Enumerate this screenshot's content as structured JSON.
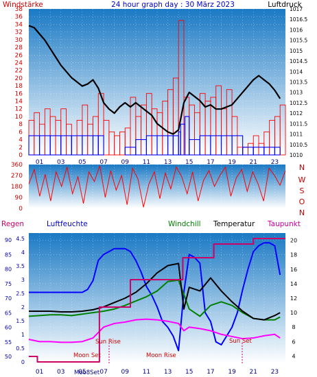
{
  "header": {
    "left_label": "Windstärke",
    "title": "24 hour graph day : 30 März 2023",
    "right_label": "Luftdruck"
  },
  "colors": {
    "grad_top": "#1a79c4",
    "grad_bottom": "#ffffff",
    "wind": "#ff0000",
    "gust": "#ff0000",
    "wind_avg": "#0000ff",
    "pressure": "#000000",
    "direction": "#ff0000",
    "humidity": "#0000ff",
    "windchill": "#008000",
    "temperature": "#000000",
    "dewpoint": "#ff00ff",
    "rain": "#cc0066",
    "axis_red": "#cc0000",
    "axis_blue": "#0000aa"
  },
  "chart_data": [
    {
      "type": "line",
      "x_ticks": [
        "01",
        "03",
        "05",
        "07",
        "09",
        "11",
        "13",
        "15",
        "17",
        "19",
        "21",
        "23"
      ],
      "y_left_ticks": [
        "0",
        "2",
        "4",
        "6",
        "8",
        "10",
        "12",
        "14",
        "16",
        "18",
        "20",
        "22",
        "24",
        "26",
        "28",
        "30",
        "32",
        "34",
        "36",
        "38"
      ],
      "y_left_range": [
        0,
        38
      ],
      "y_right_ticks": [
        "1010",
        "1010.5",
        "1011",
        "1011.5",
        "1012",
        "1012.5",
        "1013",
        "1013.5",
        "1014",
        "1014.5",
        "1015",
        "1015.5",
        "1016",
        "1016.5",
        "1017"
      ],
      "y_right_range": [
        1010,
        1017
      ],
      "grid": true,
      "series": [
        {
          "name": "Windstärke",
          "axis": "left",
          "x": [
            0,
            0.5,
            1,
            1.5,
            2,
            2.5,
            3,
            3.5,
            4,
            4.5,
            5,
            5.5,
            6,
            6.5,
            7,
            7.5,
            8,
            8.5,
            9,
            9.5,
            10,
            10.5,
            11,
            11.5,
            12,
            12.5,
            13,
            13.5,
            14,
            14.5,
            15,
            15.5,
            16,
            16.5,
            17,
            17.5,
            18,
            18.5,
            19,
            19.5,
            20,
            20.5,
            21,
            21.5,
            22,
            22.5,
            23,
            23.5
          ],
          "values": [
            9,
            11,
            8,
            12,
            10,
            9,
            12,
            8,
            5,
            9,
            13,
            8,
            10,
            16,
            9,
            6,
            5,
            6,
            7,
            15,
            10,
            13,
            16,
            12,
            11,
            14,
            17,
            20,
            35,
            15,
            13,
            11,
            16,
            14,
            15,
            18,
            12,
            17,
            10,
            2,
            2,
            3,
            5,
            3,
            6,
            9,
            10,
            13
          ]
        },
        {
          "name": "Böen",
          "axis": "left",
          "x": [
            0,
            1,
            2,
            3,
            4,
            5,
            6,
            6.5,
            7,
            8,
            9,
            10,
            11,
            12,
            13,
            13.5,
            14,
            14.2,
            14.6,
            15,
            16,
            17,
            18,
            19,
            20,
            21,
            22,
            23,
            23.5
          ],
          "values": [
            5,
            5,
            5,
            5,
            5,
            5,
            5,
            5,
            0,
            0,
            2,
            4,
            5,
            5,
            5,
            5,
            6,
            8,
            10,
            4,
            5,
            5,
            5,
            5,
            2,
            2,
            2,
            2,
            5
          ]
        },
        {
          "name": "Luftdruck",
          "axis": "right",
          "x": [
            0,
            0.5,
            1,
            1.5,
            2,
            2.5,
            3,
            3.5,
            4,
            4.5,
            5,
            5.5,
            6,
            6.5,
            7,
            7.5,
            8,
            8.5,
            9,
            9.5,
            10,
            10.5,
            11,
            11.5,
            12,
            12.5,
            13,
            13.5,
            14,
            14.5,
            15,
            15.5,
            16,
            16.5,
            17,
            17.5,
            18,
            18.5,
            19,
            19.5,
            20,
            20.5,
            21,
            21.5,
            22,
            22.5,
            23,
            23.5
          ],
          "values": [
            1016.2,
            1016.1,
            1015.8,
            1015.5,
            1015.1,
            1014.7,
            1014.3,
            1014.0,
            1013.7,
            1013.5,
            1013.3,
            1013.4,
            1013.6,
            1013.2,
            1012.5,
            1012.2,
            1012.0,
            1012.3,
            1012.5,
            1012.3,
            1012.5,
            1012.3,
            1012.1,
            1011.9,
            1011.5,
            1011.3,
            1011.1,
            1011.0,
            1011.2,
            1012.5,
            1013.0,
            1012.8,
            1012.6,
            1012.3,
            1012.4,
            1012.2,
            1012.2,
            1012.3,
            1012.4,
            1012.7,
            1013.0,
            1013.3,
            1013.6,
            1013.8,
            1013.6,
            1013.4,
            1013.1,
            1012.7
          ]
        }
      ]
    },
    {
      "type": "scatter",
      "y_left_ticks": [
        "0",
        "90",
        "180",
        "270",
        "360"
      ],
      "y_left_range": [
        0,
        360
      ],
      "y_right_labels": [
        "N",
        "W",
        "S",
        "O",
        "N"
      ],
      "x_ticks": [
        "01",
        "03",
        "05",
        "07",
        "09",
        "11",
        "13",
        "15",
        "17",
        "19",
        "21",
        "23"
      ],
      "series": [
        {
          "name": "Windrichtung",
          "x_range": [
            0,
            24
          ],
          "values": [
            200,
            320,
            100,
            280,
            60,
            300,
            180,
            340,
            120,
            260,
            40,
            300,
            220,
            350,
            90,
            310,
            150,
            270,
            30,
            330,
            240,
            10,
            200,
            300,
            80,
            290,
            160,
            340,
            260,
            120,
            300,
            60,
            230,
            310,
            180,
            270,
            340,
            100,
            250,
            320,
            140,
            300,
            200,
            60,
            330,
            270,
            190,
            310
          ]
        }
      ]
    },
    {
      "type": "line",
      "legend": [
        "Regen",
        "Luftfeuchte",
        "Windchill",
        "Temperatur",
        "Taupunkt"
      ],
      "x_ticks": [
        "01",
        "03",
        "05",
        "07",
        "09",
        "11",
        "13",
        "15",
        "17",
        "19",
        "21",
        "23"
      ],
      "y_rain_ticks": [
        "0",
        "0.5",
        "1",
        "1.5",
        "2",
        "2.5",
        "3",
        "3.5",
        "4",
        "4.5"
      ],
      "y_rain_range": [
        0,
        4.5
      ],
      "y_hum_ticks": [
        "50",
        "55",
        "60",
        "65",
        "70",
        "75",
        "80",
        "85",
        "90"
      ],
      "y_hum_range": [
        50,
        90
      ],
      "y_temp_ticks": [
        "4",
        "6",
        "8",
        "10",
        "12",
        "14",
        "16",
        "18",
        "20"
      ],
      "y_temp_range": [
        3,
        21
      ],
      "annotations": [
        "Moon Set",
        "Sun Rise",
        "Moon Rise",
        "Sun Set",
        "Moo8Set"
      ],
      "series": [
        {
          "name": "Luftfeuchte",
          "axis": "humidity",
          "x": [
            0,
            1,
            2,
            3,
            4,
            5,
            5.5,
            6,
            6.5,
            7,
            7.5,
            8,
            8.5,
            9,
            9.5,
            10,
            10.5,
            11,
            11.5,
            12,
            12.5,
            13,
            13.5,
            14,
            14.5,
            15,
            15.5,
            16,
            16.5,
            17,
            17.5,
            18,
            18.5,
            19,
            19.5,
            20,
            20.5,
            21,
            21.5,
            22,
            22.5,
            23,
            23.5
          ],
          "values": [
            72,
            72,
            72,
            72,
            72,
            72,
            73,
            76,
            83,
            85,
            86,
            87,
            87,
            87,
            86,
            83,
            79,
            74,
            71,
            67,
            62,
            60,
            57,
            52,
            72,
            85,
            84,
            82,
            65,
            62,
            55,
            54,
            57,
            60,
            65,
            73,
            80,
            86,
            88,
            89,
            89,
            88,
            78
          ]
        },
        {
          "name": "Windchill",
          "axis": "temp",
          "x": [
            0,
            1,
            2,
            3,
            4,
            5,
            6,
            7,
            8,
            9,
            10,
            11,
            12,
            13,
            14,
            14.5,
            15,
            16,
            17,
            18,
            19,
            20,
            21,
            22,
            23,
            23.5
          ],
          "values": [
            9.5,
            9.6,
            9.7,
            9.7,
            9.6,
            9.8,
            10.0,
            10.2,
            10.5,
            11.0,
            11.6,
            12.2,
            13.0,
            14.3,
            14.5,
            12.5,
            10.5,
            9.5,
            11.0,
            11.5,
            11.0,
            10.0,
            9.2,
            9.0,
            9.0,
            9.4
          ]
        },
        {
          "name": "Temperatur",
          "axis": "temp",
          "x": [
            0,
            1,
            2,
            3,
            4,
            5,
            6,
            7,
            8,
            9,
            10,
            11,
            12,
            13,
            14,
            14.5,
            15,
            16,
            17,
            18,
            19,
            20,
            21,
            22,
            23,
            23.5
          ],
          "values": [
            10.2,
            10.2,
            10.2,
            10.1,
            10.1,
            10.2,
            10.4,
            10.8,
            11.4,
            12.0,
            12.8,
            14.0,
            15.5,
            16.5,
            16.8,
            10.5,
            13.5,
            13.0,
            14.8,
            13.0,
            11.5,
            10.2,
            9.2,
            9.0,
            9.6,
            10.0
          ]
        },
        {
          "name": "Taupunkt",
          "axis": "temp",
          "x": [
            0,
            1,
            2,
            3,
            4,
            5,
            6,
            7,
            8,
            9,
            10,
            11,
            12,
            13,
            14,
            14.5,
            15,
            16,
            17,
            18,
            19,
            20,
            21,
            22,
            23,
            23.5
          ],
          "values": [
            6.3,
            6.0,
            6.0,
            5.9,
            5.9,
            6.0,
            6.5,
            8.0,
            8.5,
            8.7,
            9.0,
            9.1,
            9.0,
            8.8,
            8.5,
            7.5,
            8.0,
            7.8,
            7.5,
            7.0,
            6.7,
            6.4,
            6.5,
            6.8,
            7.0,
            6.5
          ]
        },
        {
          "name": "Regen",
          "axis": "rain",
          "step": true,
          "x": [
            0,
            0.3,
            0.8,
            6.6,
            6.6,
            9.5,
            9.5,
            14.4,
            14.4,
            17.3,
            17.3,
            21.0,
            21.0,
            24
          ],
          "values": [
            0.2,
            0.2,
            0.0,
            0.0,
            2.0,
            2.0,
            3.0,
            3.0,
            3.8,
            3.8,
            4.3,
            4.3,
            4.5,
            4.5
          ]
        }
      ]
    }
  ]
}
